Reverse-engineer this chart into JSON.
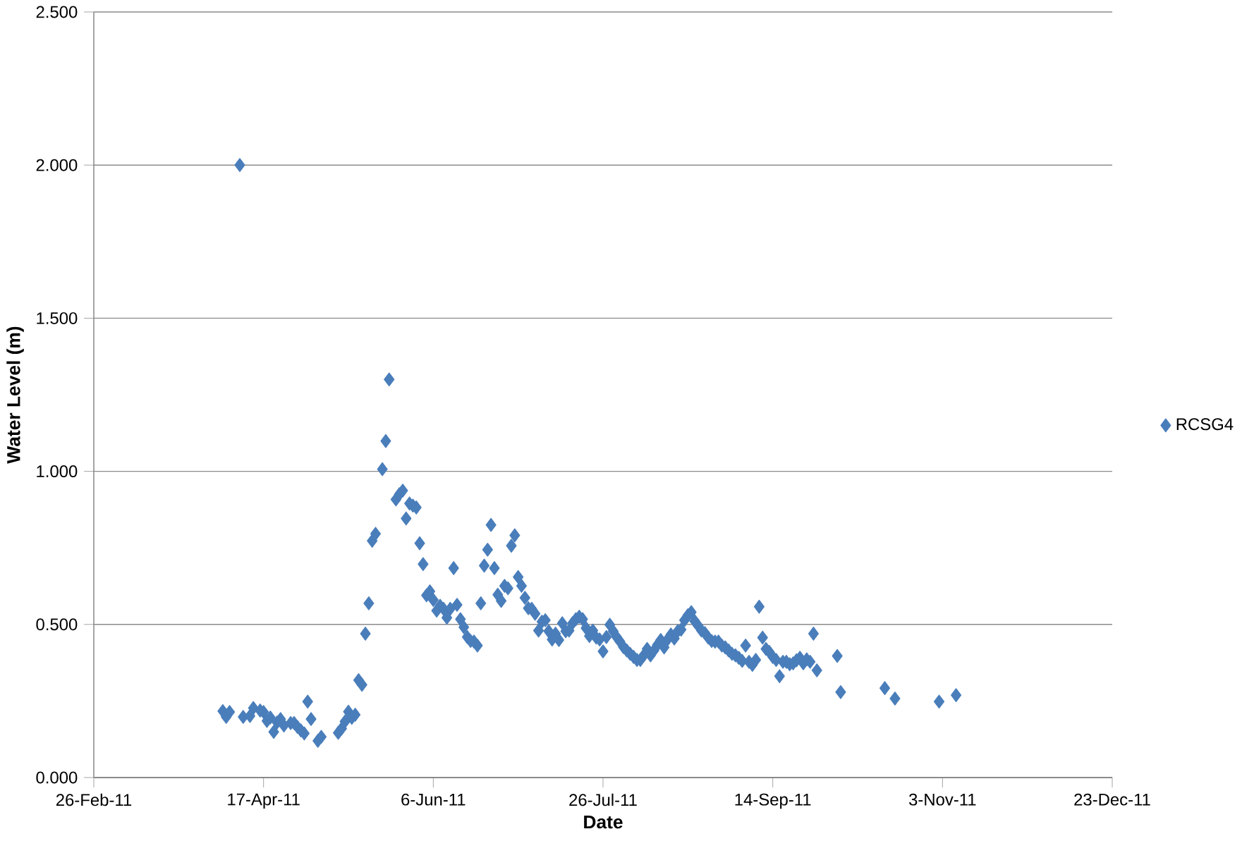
{
  "chart_data": {
    "type": "scatter",
    "xlabel": "Date",
    "ylabel": "Water Level (m)",
    "x": [
      "2011-04-05",
      "2011-04-06",
      "2011-04-07",
      "2011-04-10",
      "2011-04-11",
      "2011-04-13",
      "2011-04-14",
      "2011-04-16",
      "2011-04-17",
      "2011-04-18",
      "2011-04-19",
      "2011-04-20",
      "2011-04-21",
      "2011-04-22",
      "2011-04-23",
      "2011-04-25",
      "2011-04-26",
      "2011-04-27",
      "2011-04-28",
      "2011-04-29",
      "2011-04-30",
      "2011-05-01",
      "2011-05-03",
      "2011-05-04",
      "2011-05-09",
      "2011-05-10",
      "2011-05-11",
      "2011-05-12",
      "2011-05-13",
      "2011-05-14",
      "2011-05-15",
      "2011-05-16",
      "2011-05-17",
      "2011-05-18",
      "2011-05-19",
      "2011-05-20",
      "2011-05-22",
      "2011-05-23",
      "2011-05-24",
      "2011-05-26",
      "2011-05-27",
      "2011-05-28",
      "2011-05-29",
      "2011-05-30",
      "2011-05-31",
      "2011-06-01",
      "2011-06-02",
      "2011-06-03",
      "2011-06-04",
      "2011-06-05",
      "2011-06-06",
      "2011-06-07",
      "2011-06-08",
      "2011-06-09",
      "2011-06-10",
      "2011-06-11",
      "2011-06-12",
      "2011-06-13",
      "2011-06-14",
      "2011-06-15",
      "2011-06-16",
      "2011-06-17",
      "2011-06-18",
      "2011-06-19",
      "2011-06-20",
      "2011-06-21",
      "2011-06-22",
      "2011-06-23",
      "2011-06-24",
      "2011-06-25",
      "2011-06-26",
      "2011-06-27",
      "2011-06-28",
      "2011-06-29",
      "2011-06-30",
      "2011-07-01",
      "2011-07-02",
      "2011-07-03",
      "2011-07-04",
      "2011-07-05",
      "2011-07-06",
      "2011-07-07",
      "2011-07-08",
      "2011-07-09",
      "2011-07-10",
      "2011-07-11",
      "2011-07-12",
      "2011-07-13",
      "2011-07-14",
      "2011-07-15",
      "2011-07-16",
      "2011-07-17",
      "2011-07-18",
      "2011-07-19",
      "2011-07-20",
      "2011-07-21",
      "2011-07-22",
      "2011-07-23",
      "2011-07-24",
      "2011-07-25",
      "2011-07-26",
      "2011-07-27",
      "2011-07-28",
      "2011-07-29",
      "2011-07-30",
      "2011-07-31",
      "2011-08-01",
      "2011-08-02",
      "2011-08-03",
      "2011-08-04",
      "2011-08-05",
      "2011-08-06",
      "2011-08-07",
      "2011-08-08",
      "2011-08-09",
      "2011-08-10",
      "2011-08-11",
      "2011-08-12",
      "2011-08-13",
      "2011-08-14",
      "2011-08-15",
      "2011-08-16",
      "2011-08-17",
      "2011-08-18",
      "2011-08-19",
      "2011-08-20",
      "2011-08-21",
      "2011-08-22",
      "2011-08-23",
      "2011-08-24",
      "2011-08-25",
      "2011-08-26",
      "2011-08-27",
      "2011-08-28",
      "2011-08-29",
      "2011-08-30",
      "2011-08-31",
      "2011-09-01",
      "2011-09-02",
      "2011-09-03",
      "2011-09-04",
      "2011-09-05",
      "2011-09-06",
      "2011-09-07",
      "2011-09-08",
      "2011-09-09",
      "2011-09-10",
      "2011-09-11",
      "2011-09-12",
      "2011-09-13",
      "2011-09-14",
      "2011-09-15",
      "2011-09-16",
      "2011-09-17",
      "2011-09-18",
      "2011-09-19",
      "2011-09-20",
      "2011-09-21",
      "2011-09-22",
      "2011-09-23",
      "2011-09-24",
      "2011-09-25",
      "2011-09-26",
      "2011-09-27",
      "2011-10-03",
      "2011-10-04",
      "2011-10-17",
      "2011-10-20",
      "2011-11-02",
      "2011-11-07"
    ],
    "series": [
      {
        "name": "RCSG4",
        "color": "#4a7ebb",
        "values": [
          0.217,
          0.198,
          0.214,
          2.0,
          0.198,
          0.201,
          0.227,
          0.219,
          0.214,
          0.185,
          0.196,
          0.149,
          0.18,
          0.191,
          0.17,
          0.178,
          0.178,
          0.165,
          0.154,
          0.144,
          0.248,
          0.191,
          0.12,
          0.133,
          0.146,
          0.16,
          0.183,
          0.215,
          0.195,
          0.205,
          0.318,
          0.303,
          0.47,
          0.569,
          0.773,
          0.796,
          1.007,
          1.099,
          1.3,
          0.908,
          0.925,
          0.937,
          0.846,
          0.895,
          0.888,
          0.882,
          0.765,
          0.697,
          0.595,
          0.608,
          0.58,
          0.545,
          0.561,
          0.551,
          0.522,
          0.551,
          0.684,
          0.564,
          0.517,
          0.491,
          0.459,
          0.446,
          0.444,
          0.431,
          0.569,
          0.692,
          0.744,
          0.825,
          0.684,
          0.597,
          0.577,
          0.626,
          0.618,
          0.757,
          0.791,
          0.655,
          0.626,
          0.587,
          0.553,
          0.551,
          0.535,
          0.48,
          0.509,
          0.514,
          0.478,
          0.451,
          0.47,
          0.449,
          0.504,
          0.478,
          0.48,
          0.504,
          0.517,
          0.525,
          0.517,
          0.488,
          0.462,
          0.48,
          0.457,
          0.451,
          0.412,
          0.459,
          0.499,
          0.478,
          0.459,
          0.444,
          0.426,
          0.415,
          0.404,
          0.394,
          0.384,
          0.384,
          0.399,
          0.42,
          0.399,
          0.415,
          0.433,
          0.449,
          0.425,
          0.451,
          0.467,
          0.454,
          0.478,
          0.483,
          0.514,
          0.53,
          0.54,
          0.511,
          0.496,
          0.48,
          0.472,
          0.457,
          0.446,
          0.444,
          0.444,
          0.431,
          0.425,
          0.415,
          0.404,
          0.399,
          0.391,
          0.381,
          0.431,
          0.378,
          0.368,
          0.384,
          0.558,
          0.457,
          0.42,
          0.41,
          0.394,
          0.384,
          0.331,
          0.378,
          0.378,
          0.37,
          0.373,
          0.383,
          0.391,
          0.373,
          0.386,
          0.378,
          0.47,
          0.35,
          0.397,
          0.279,
          0.292,
          0.258,
          0.248,
          0.269
        ]
      }
    ],
    "xlim": [
      "2011-02-26",
      "2011-12-23"
    ],
    "xticks": [
      {
        "value": "2011-02-26",
        "label": "26-Feb-11"
      },
      {
        "value": "2011-04-17",
        "label": "17-Apr-11"
      },
      {
        "value": "2011-06-06",
        "label": "6-Jun-11"
      },
      {
        "value": "2011-07-26",
        "label": "26-Jul-11"
      },
      {
        "value": "2011-09-14",
        "label": "14-Sep-11"
      },
      {
        "value": "2011-11-03",
        "label": "3-Nov-11"
      },
      {
        "value": "2011-12-23",
        "label": "23-Dec-11"
      }
    ],
    "ylim": [
      0,
      2.5
    ],
    "yticks": [
      {
        "value": 0,
        "label": "0.000"
      },
      {
        "value": 0.5,
        "label": "0.500"
      },
      {
        "value": 1,
        "label": "1.000"
      },
      {
        "value": 1.5,
        "label": "1.500"
      },
      {
        "value": 2,
        "label": "2.000"
      },
      {
        "value": 2.5,
        "label": "2.500"
      }
    ],
    "grid": "y",
    "legend": "right",
    "marker": "diamond"
  }
}
